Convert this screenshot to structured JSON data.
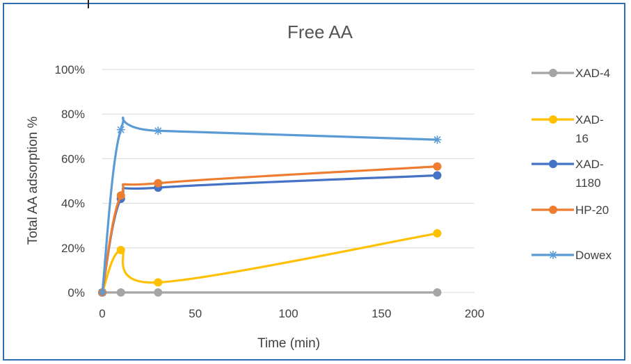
{
  "chart_data": {
    "type": "line",
    "title": "Free AA",
    "xlabel": "Time (min)",
    "ylabel": "Total AA adsorption %",
    "xlim": [
      0,
      200
    ],
    "ylim": [
      0,
      100
    ],
    "x_ticks": [
      "0",
      "50",
      "100",
      "150",
      "200"
    ],
    "y_ticks": [
      "0%",
      "20%",
      "40%",
      "60%",
      "80%",
      "100%"
    ],
    "grid": true,
    "legend_position": "right",
    "x": [
      0,
      10,
      30,
      180
    ],
    "series": [
      {
        "name": "XAD-4",
        "legend_lines": [
          "XAD-4"
        ],
        "color": "#a5a5a5",
        "marker": "circle",
        "values": [
          0,
          0,
          0,
          0
        ]
      },
      {
        "name": "XAD-16",
        "legend_lines": [
          "XAD-",
          "16"
        ],
        "color": "#ffc000",
        "marker": "circle",
        "values": [
          0,
          19,
          4.5,
          26.5
        ]
      },
      {
        "name": "XAD-1180",
        "legend_lines": [
          "XAD-",
          "1180"
        ],
        "color": "#4472c4",
        "marker": "circle",
        "values": [
          0,
          42,
          47,
          52.5
        ]
      },
      {
        "name": "HP-20",
        "legend_lines": [
          "HP-20"
        ],
        "color": "#ed7d31",
        "marker": "circle",
        "values": [
          0,
          43.5,
          49,
          56.5
        ]
      },
      {
        "name": "Dowex",
        "legend_lines": [
          "Dowex"
        ],
        "color": "#5b9bd5",
        "marker": "star",
        "values": [
          0,
          73,
          72.5,
          68.5
        ]
      }
    ]
  }
}
